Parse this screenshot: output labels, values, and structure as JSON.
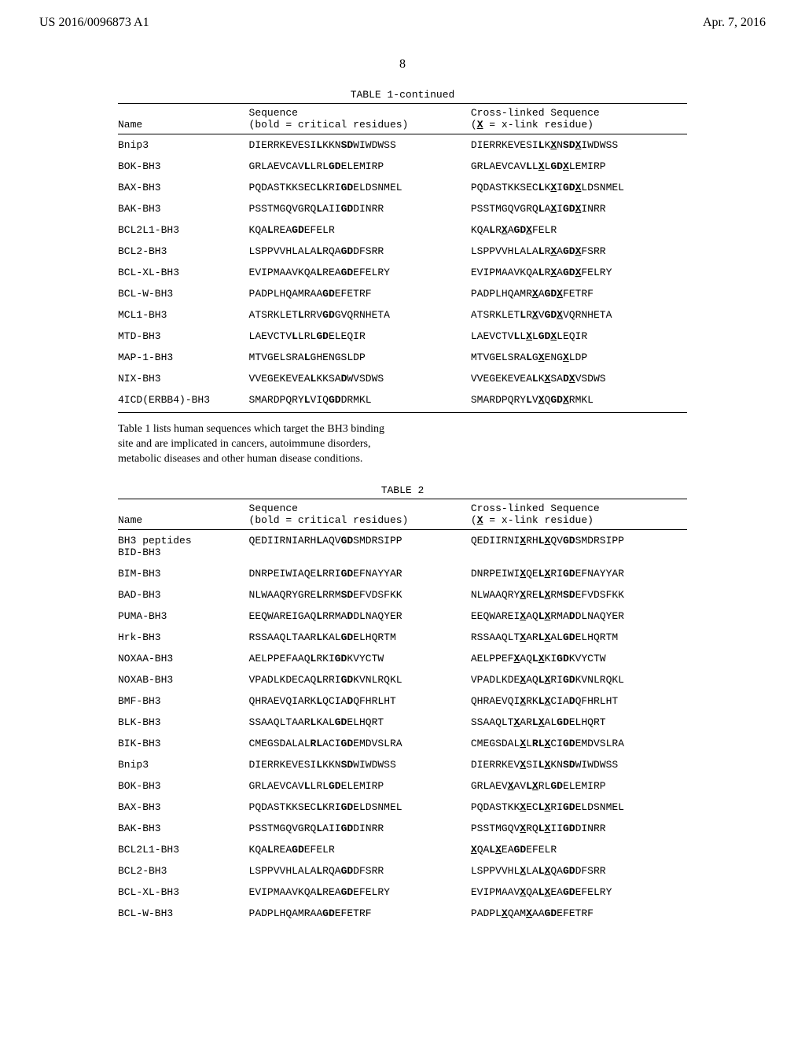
{
  "header": {
    "left": "US 2016/0096873 A1",
    "right": "Apr. 7, 2016"
  },
  "page_number": "8",
  "table1": {
    "caption": "TABLE 1-continued",
    "columns": {
      "name": "Name",
      "seq_line1": "Sequence",
      "seq_line2": "(bold = critical residues)",
      "cross_line1": "Cross-linked Sequence",
      "cross_line2": "(_X_ = x-link residue)"
    },
    "rows": [
      {
        "name": "Bnip3",
        "seq": "DIERRKEVESI*L*KKN*SD*WIWDWSS",
        "cross": "DIERRKEVESI*L*K_X_N*SD*_X_IWDWSS"
      },
      {
        "name": "BOK-BH3",
        "seq": "GRLAEVCAV*L*LRL*GD*ELEMIRP",
        "cross": "GRLAEVCAV*L*L_X_L*GD*_X_LEMIRP"
      },
      {
        "name": "BAX-BH3",
        "seq": "PQDASTKKSEC*L*KRI*GD*ELDSNMEL",
        "cross": "PQDASTKKSEC*L*K_X_I*GD*_X_LDSNMEL"
      },
      {
        "name": "BAK-BH3",
        "seq": "PSSTMGQVGRQ*L*AII*GD*DINRR",
        "cross": "PSSTMGQVGRQ*L*A_X_I*GD*_X_INRR"
      },
      {
        "name": "BCL2L1-BH3",
        "seq": "KQA*L*REA*GD*EFELR",
        "cross": "KQA*L*R_X_A*GD*_X_FELR"
      },
      {
        "name": "BCL2-BH3",
        "seq": "LSPPVVHLALA*L*RQA*GD*DFSRR",
        "cross": "LSPPVVHLALA*L*R_X_A*GD*_X_FSRR"
      },
      {
        "name": "BCL-XL-BH3",
        "seq": "EVIPMAAVKQA*L*REA*GD*EFELRY",
        "cross": "EVIPMAAVKQA*L*R_X_A*GD*_X_FELRY"
      },
      {
        "name": "BCL-W-BH3",
        "seq": "PADPLHQAMRAA*GD*EFETRF",
        "cross": "PADPLHQAMR_X_A*GD*_X_FETRF"
      },
      {
        "name": "MCL1-BH3",
        "seq": "ATSRKLET*L*RRV*GD*GVQRNHETA",
        "cross": "ATSRKLET*L*R_X_V*GD*_X_VQRNHETA"
      },
      {
        "name": "MTD-BH3",
        "seq": "LAEVCTV*L*LRL*GD*ELEQIR",
        "cross": "LAEVCTV*L*L_X_L*GD*_X_LEQIR"
      },
      {
        "name": "MAP-1-BH3",
        "seq": "MTVGELSRA*L*GHENGSLDP",
        "cross": "MTVGELSRA*L*G_X_ENG_X_LDP"
      },
      {
        "name": "NIX-BH3",
        "seq": "VVEGEKEVEA*L*KKSA*D*WVSDWS",
        "cross": "VVEGEKEVEA*L*K_X_SA*D*_X_VSDWS"
      },
      {
        "name": "4ICD(ERBB4)-BH3",
        "seq": "SMARDPQRY*L*VIQ*GD*DRMKL",
        "cross": "SMARDPQRY*L*V_X_Q*GD*_X_RMKL"
      }
    ]
  },
  "intertext": "Table 1 lists human sequences which target the BH3 binding site and are implicated in cancers, autoimmune disorders, metabolic diseases and other human disease conditions.",
  "table2": {
    "caption": "TABLE 2",
    "columns": {
      "name": "Name",
      "seq_line1": "Sequence",
      "seq_line2": "(bold = critical residues)",
      "cross_line1": "Cross-linked Sequence",
      "cross_line2": "(_X_ = x-link residue)"
    },
    "rows": [
      {
        "name": "BH3 peptides\nBID-BH3",
        "seq": "QEDIIRNIARH*L*AQV*GD*SMDRSIPP",
        "cross": "QEDIIRNI_X_RH*L*_X_QV*GD*SMDRSIPP"
      },
      {
        "name": "BIM-BH3",
        "seq": "DNRPEIWIAQE*L*RRI*GD*EFNAYYAR",
        "cross": "DNRPEIWI_X_QE*L*_X_RI*GD*EFNAYYAR"
      },
      {
        "name": "BAD-BH3",
        "seq": "NLWAAQRYGRE*L*RRM*SD*EFVDSFKK",
        "cross": "NLWAAQRY_X_RE*L*_X_RM*SD*EFVDSFKK"
      },
      {
        "name": "PUMA-BH3",
        "seq": "EEQWAREIGAQ*L*RRMA*D*DLNAQYER",
        "cross": "EEQWAREI_X_AQ*L*_X_RMA*D*DLNAQYER"
      },
      {
        "name": "Hrk-BH3",
        "seq": "RSSAAQLTAAR*L*KAL*GD*ELHQRTM",
        "cross": "RSSAAQLT_X_AR*L*_X_AL*GD*ELHQRTM"
      },
      {
        "name": "NOXAA-BH3",
        "seq": "AELPPEFAAQ*L*RKI*GD*KVYCTW",
        "cross": "AELPPEF_X_AQ*L*_X_KI*GD*KVYCTW"
      },
      {
        "name": "NOXAB-BH3",
        "seq": "VPADLKDECAQ*L*RRI*GD*KVNLRQKL",
        "cross": "VPADLKDE_X_AQ*L*_X_RI*GD*KVNLRQKL"
      },
      {
        "name": "BMF-BH3",
        "seq": "QHRAEVQIARK*L*QCIA*D*QFHRLHT",
        "cross": "QHRAEVQI_X_RK*L*_X_CIA*D*QFHRLHT"
      },
      {
        "name": "BLK-BH3",
        "seq": "SSAAQLTAAR*L*KAL*GD*ELHQRT",
        "cross": "SSAAQLT_X_AR*L*_X_AL*GD*ELHQRT"
      },
      {
        "name": "BIK-BH3",
        "seq": "CMEGSDALAL*RL*ACI*GD*EMDVSLRA",
        "cross": "CMEGSDAL_X_L*RL*_X_CI*GD*EMDVSLRA"
      },
      {
        "name": "Bnip3",
        "seq": "DIERRKEVESI*L*KKN*SD*WIWDWSS",
        "cross": "DIERRKEV_X_SI*L*_X_KN*SD*WIWDWSS"
      },
      {
        "name": "BOK-BH3",
        "seq": "GRLAEVCAV*L*LRL*GD*ELEMIRP",
        "cross": "GRLAEV_X_AV*L*_X_RL*GD*ELEMIRP"
      },
      {
        "name": "BAX-BH3",
        "seq": "PQDASTKKSEC*L*KRI*GD*ELDSNMEL",
        "cross": "PQDASTKK_X_EC*L*_X_RI*GD*ELDSNMEL"
      },
      {
        "name": "BAK-BH3",
        "seq": "PSSTMGQVGRQ*L*AII*GD*DINRR",
        "cross": "PSSTMGQV_X_RQ*L*_X_II*GD*DINRR"
      },
      {
        "name": "BCL2L1-BH3",
        "seq": "KQA*L*REA*GD*EFELR",
        "cross": "_X_QA*L*_X_EA*GD*EFELR"
      },
      {
        "name": "BCL2-BH3",
        "seq": "LSPPVVHLALA*L*RQA*GD*DFSRR",
        "cross": "LSPPVVHL_X_LA*L*_X_QA*GD*DFSRR"
      },
      {
        "name": "BCL-XL-BH3",
        "seq": "EVIPMAAVKQA*L*REA*GD*EFELRY",
        "cross": "EVIPMAAV_X_QA*L*_X_EA*GD*EFELRY"
      },
      {
        "name": "BCL-W-BH3",
        "seq": "PADPLHQAMRAA*GD*EFETRF",
        "cross": "PADPL_X_QAM_X_AA*GD*EFETRF"
      }
    ]
  }
}
